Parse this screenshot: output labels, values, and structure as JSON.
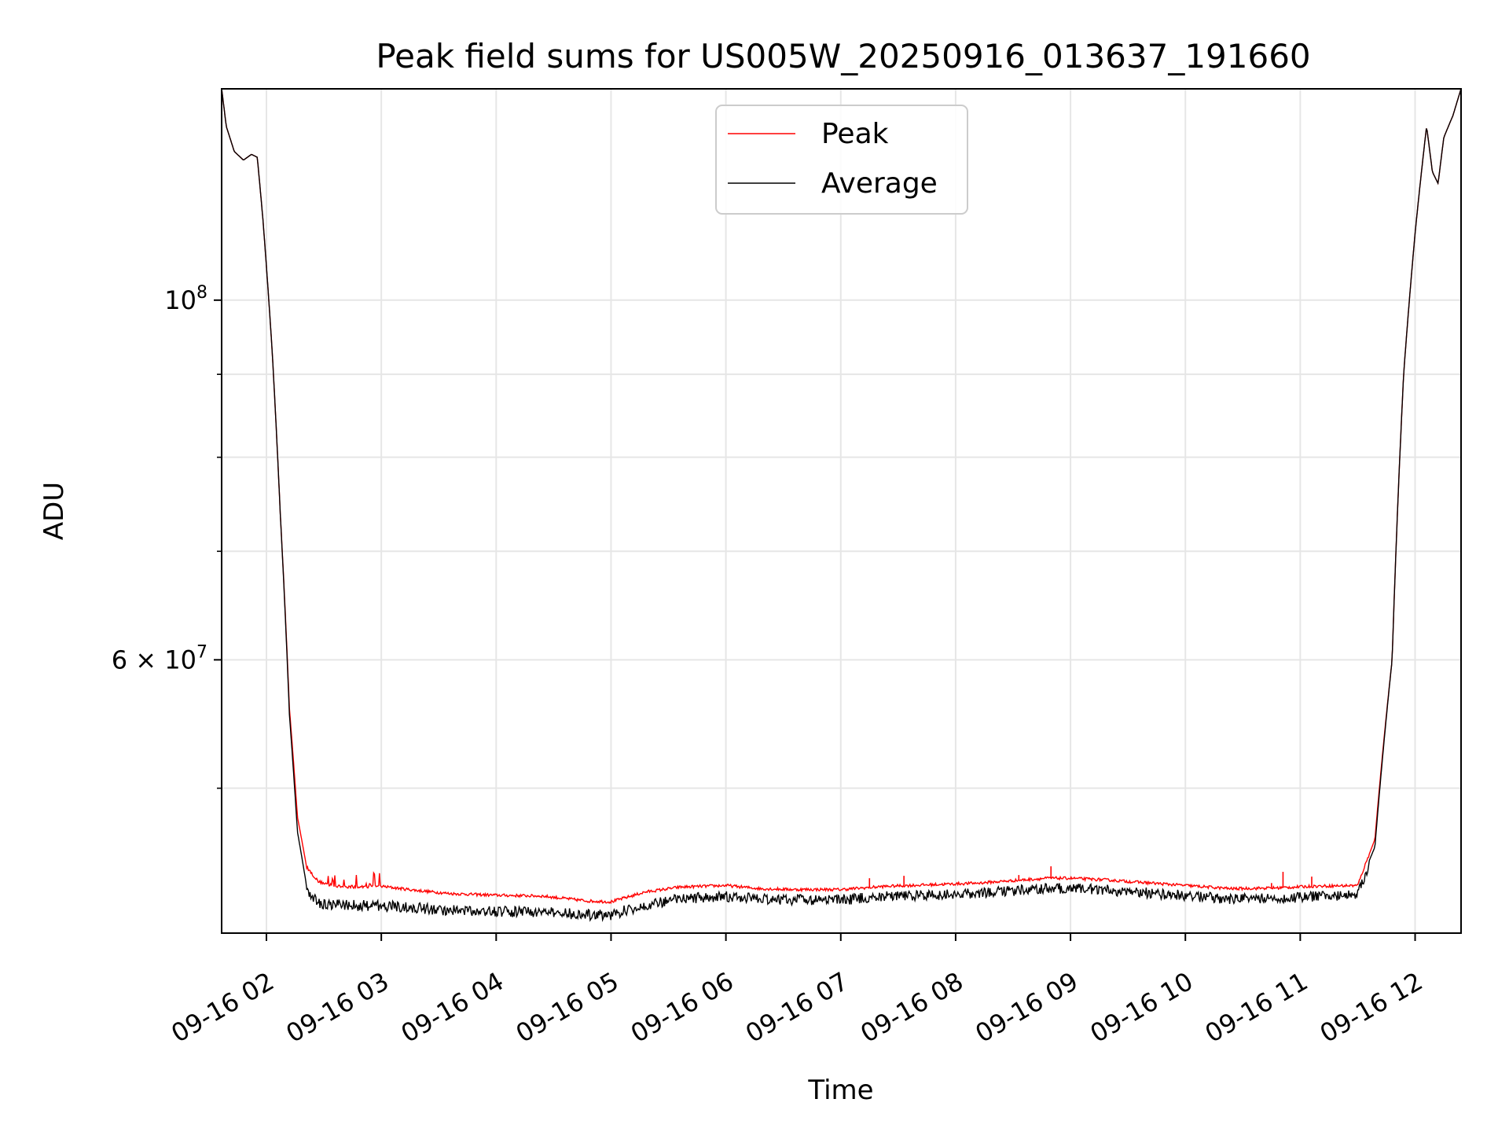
{
  "chart_data": {
    "type": "line",
    "title": "Peak field sums for US005W_20250916_013637_191660",
    "xlabel": "Time",
    "ylabel": "ADU",
    "yscale": "log",
    "ylim": [
      40700000,
      135000000
    ],
    "xlim_hours": [
      1.61,
      12.4
    ],
    "grid": true,
    "legend_position": "upper center",
    "x_tick_labels": [
      "09-16 02",
      "09-16 03",
      "09-16 04",
      "09-16 05",
      "09-16 06",
      "09-16 07",
      "09-16 08",
      "09-16 09",
      "09-16 10",
      "09-16 11",
      "09-16 12"
    ],
    "x_tick_hours": [
      2,
      3,
      4,
      5,
      6,
      7,
      8,
      9,
      10,
      11,
      12
    ],
    "y_major_ticks": [
      {
        "value": 60000000,
        "mantissa": "6",
        "exponent": "7"
      },
      {
        "value": 100000000,
        "mantissa": "",
        "exponent": "8"
      }
    ],
    "y_minor_ticks": [
      50000000,
      70000000,
      80000000,
      90000000
    ],
    "series": [
      {
        "name": "Peak",
        "color": "#ff0000",
        "x_hours": [
          1.61,
          1.65,
          1.72,
          1.8,
          1.87,
          1.92,
          1.97,
          2.05,
          2.12,
          2.2,
          2.27,
          2.35,
          2.45,
          2.6,
          2.8,
          3.0,
          3.3,
          3.6,
          4.0,
          4.4,
          4.8,
          5.0,
          5.3,
          5.6,
          6.0,
          6.3,
          6.6,
          7.0,
          7.4,
          7.8,
          8.2,
          8.5,
          8.8,
          9.0,
          9.3,
          9.6,
          10.0,
          10.4,
          10.8,
          11.1,
          11.5,
          11.65,
          11.8,
          11.9,
          12.0,
          12.1,
          12.15,
          12.2,
          12.25,
          12.33,
          12.4
        ],
        "values": [
          135000000,
          128000000,
          123500000,
          122000000,
          123000000,
          122500000,
          112000000,
          93000000,
          74000000,
          56000000,
          48000000,
          44700000,
          43800000,
          43500000,
          43450000,
          43500000,
          43250000,
          43050000,
          42950000,
          42900000,
          42600000,
          42550000,
          43150000,
          43450000,
          43550000,
          43350000,
          43300000,
          43300000,
          43500000,
          43600000,
          43700000,
          43850000,
          44000000,
          44000000,
          43900000,
          43750000,
          43550000,
          43350000,
          43400000,
          43500000,
          43550000,
          46500000,
          60000000,
          90000000,
          110000000,
          128000000,
          120000000,
          118000000,
          126000000,
          130000000,
          135000000
        ]
      },
      {
        "name": "Average",
        "color": "#000000",
        "x_hours": [
          1.61,
          1.65,
          1.72,
          1.8,
          1.87,
          1.92,
          1.97,
          2.05,
          2.12,
          2.2,
          2.27,
          2.35,
          2.45,
          2.6,
          2.8,
          3.0,
          3.3,
          3.6,
          4.0,
          4.4,
          4.8,
          5.0,
          5.3,
          5.6,
          6.0,
          6.3,
          6.6,
          7.0,
          7.4,
          7.8,
          8.2,
          8.5,
          8.8,
          9.0,
          9.3,
          9.6,
          10.0,
          10.4,
          10.8,
          11.1,
          11.5,
          11.65,
          11.8,
          11.9,
          12.0,
          12.1,
          12.15,
          12.2,
          12.25,
          12.33,
          12.4
        ],
        "values": [
          135000000,
          128000000,
          123500000,
          122000000,
          123000000,
          122500000,
          112000000,
          93000000,
          74000000,
          55500000,
          47000000,
          43500000,
          42800000,
          42700000,
          42650000,
          42650000,
          42500000,
          42350000,
          42300000,
          42250000,
          42100000,
          42100000,
          42700000,
          43050000,
          43200000,
          43050000,
          43000000,
          43000000,
          43200000,
          43300000,
          43400000,
          43550000,
          43700000,
          43700000,
          43600000,
          43450000,
          43250000,
          43050000,
          43100000,
          43200000,
          43300000,
          46000000,
          60000000,
          90000000,
          110000000,
          128000000,
          120000000,
          118000000,
          126000000,
          130000000,
          135000000
        ]
      }
    ],
    "spikes": [
      {
        "series": "Peak",
        "x_hour": 7.25,
        "value": 44000000
      },
      {
        "series": "Peak",
        "x_hour": 7.55,
        "value": 44150000
      },
      {
        "series": "Peak",
        "x_hour": 8.55,
        "value": 44200000
      },
      {
        "series": "Peak",
        "x_hour": 8.83,
        "value": 44750000
      },
      {
        "series": "Peak",
        "x_hour": 10.75,
        "value": 43700000
      },
      {
        "series": "Peak",
        "x_hour": 10.85,
        "value": 44400000
      },
      {
        "series": "Peak",
        "x_hour": 11.1,
        "value": 44100000
      }
    ]
  }
}
